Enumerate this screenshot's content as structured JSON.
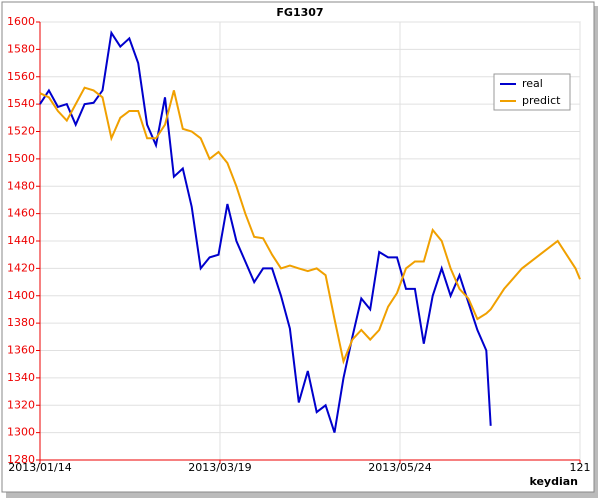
{
  "chart_data": {
    "type": "line",
    "title": "FG1307",
    "x_label": "keydian",
    "x": [
      0,
      2,
      4,
      6,
      8,
      10,
      12,
      14,
      16,
      18,
      20,
      22,
      24,
      26,
      28,
      30,
      32,
      34,
      36,
      38,
      40,
      42,
      44,
      46,
      48,
      50,
      52,
      54,
      56,
      58,
      60,
      62,
      64,
      66,
      68,
      70,
      72,
      74,
      76,
      78,
      80,
      82,
      84,
      86,
      88,
      90,
      92,
      94,
      96,
      98,
      100,
      101,
      104,
      108,
      112,
      116,
      120,
      121
    ],
    "series": [
      {
        "name": "real",
        "color": "#0000cc",
        "values": [
          1540,
          1550,
          1538,
          1540,
          1525,
          1540,
          1541,
          1550,
          1592,
          1582,
          1588,
          1570,
          1525,
          1510,
          1545,
          1487,
          1493,
          1465,
          1420,
          1428,
          1430,
          1467,
          1440,
          1425,
          1410,
          1420,
          1420,
          1400,
          1376,
          1322,
          1345,
          1315,
          1320,
          1300,
          1340,
          1370,
          1398,
          1390,
          1432,
          1428,
          1428,
          1405,
          1405,
          1365,
          1400,
          1420,
          1400,
          1415,
          1395,
          1375,
          1360,
          1305,
          null,
          null,
          null,
          null,
          null,
          null
        ]
      },
      {
        "name": "predict",
        "color": "#f0a000",
        "values": [
          1548,
          1545,
          1535,
          1528,
          1540,
          1552,
          1550,
          1545,
          1515,
          1530,
          1535,
          1535,
          1515,
          1515,
          1525,
          1550,
          1522,
          1520,
          1515,
          1500,
          1505,
          1497,
          1480,
          1460,
          1443,
          1442,
          1430,
          1420,
          1422,
          1420,
          1418,
          1420,
          1415,
          1383,
          1352,
          1368,
          1375,
          1368,
          1375,
          1392,
          1402,
          1420,
          1425,
          1425,
          1448,
          1440,
          1420,
          1405,
          1398,
          1383,
          1387,
          1390,
          1405,
          1420,
          1430,
          1440,
          1420,
          1412
        ]
      }
    ],
    "xlim": [
      0,
      121
    ],
    "xticks": [
      {
        "value": 0,
        "label": "2013/01/14"
      },
      {
        "value": 40.33,
        "label": "2013/03/19"
      },
      {
        "value": 80.67,
        "label": "2013/05/24"
      },
      121
    ],
    "ylim": [
      1280,
      1600
    ],
    "yticks": [
      1280,
      1300,
      1320,
      1340,
      1360,
      1380,
      1400,
      1420,
      1440,
      1460,
      1480,
      1500,
      1520,
      1540,
      1560,
      1580,
      1600
    ],
    "grid": true,
    "legend": "upper-right"
  }
}
